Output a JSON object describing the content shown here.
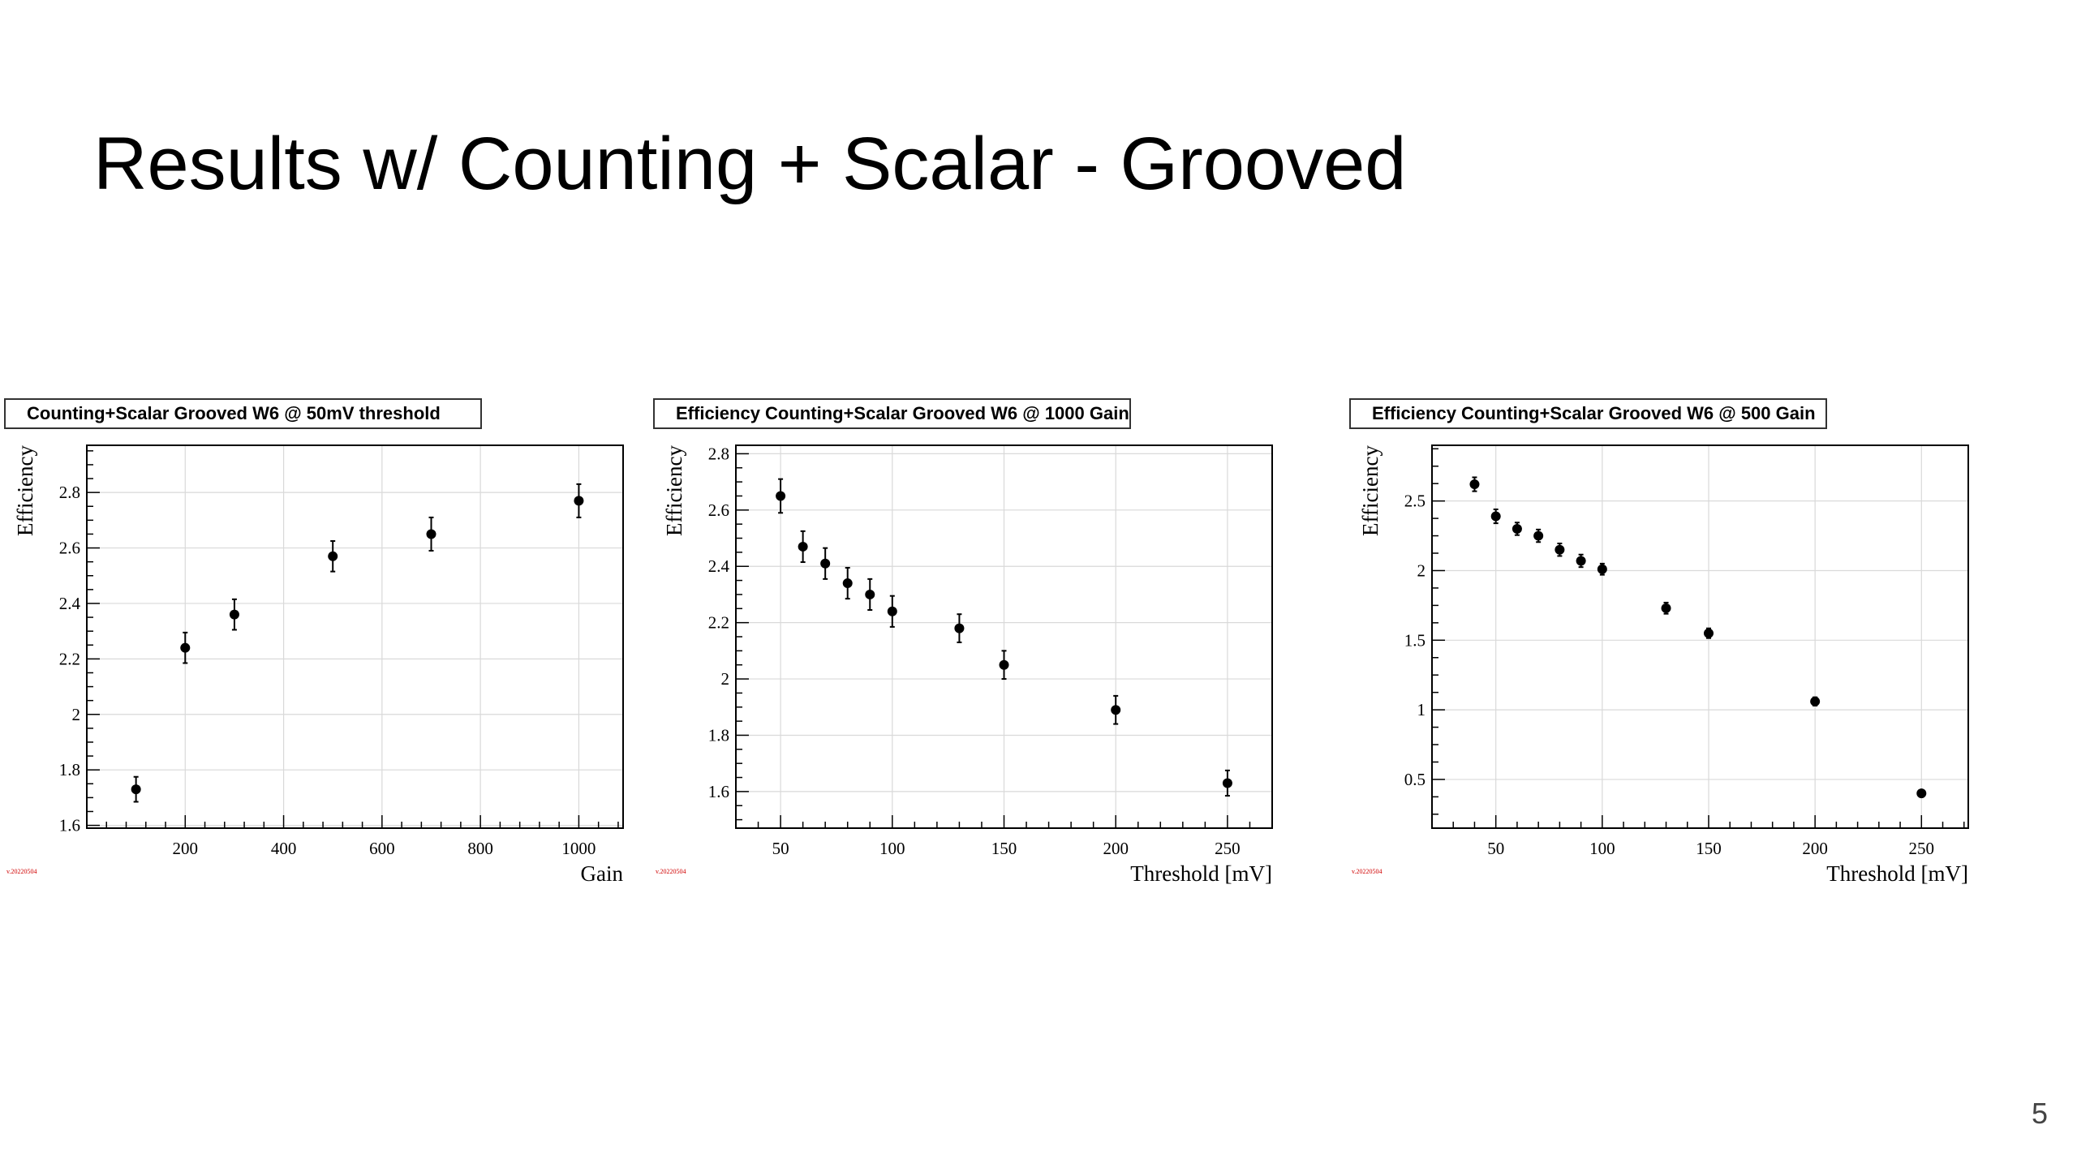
{
  "slide": {
    "title": "Results w/ Counting + Scalar - Grooved",
    "page_number": "5"
  },
  "chart_data": [
    {
      "type": "scatter",
      "title": "Counting+Scalar Grooved W6 @ 50mV threshold",
      "xlabel": "Gain",
      "ylabel": "Efficiency",
      "xlim": [
        0,
        1090
      ],
      "ylim": [
        1.59,
        2.97
      ],
      "xticks": [
        200,
        400,
        600,
        800,
        1000
      ],
      "yticks": [
        1.6,
        1.8,
        2,
        2.2,
        2.4,
        2.6,
        2.8
      ],
      "xtick_labels": [
        "200",
        "400",
        "600",
        "800",
        "1000"
      ],
      "ytick_labels": [
        "1.6",
        "1.8",
        "2",
        "2.2",
        "2.4",
        "2.6",
        "2.8"
      ],
      "grid": true,
      "stamp": "v.20220504",
      "series": [
        {
          "x": [
            100,
            200,
            300,
            500,
            700,
            1000
          ],
          "y": [
            1.73,
            2.24,
            2.36,
            2.57,
            2.65,
            2.77
          ],
          "yerr": [
            0.045,
            0.055,
            0.055,
            0.055,
            0.06,
            0.06
          ]
        }
      ]
    },
    {
      "type": "scatter",
      "title": "Efficiency Counting+Scalar Grooved W6 @ 1000 Gain",
      "xlabel": "Threshold [mV]",
      "ylabel": "Efficiency",
      "xlim": [
        30,
        270
      ],
      "ylim": [
        1.47,
        2.83
      ],
      "xticks": [
        50,
        100,
        150,
        200,
        250
      ],
      "yticks": [
        1.6,
        1.8,
        2,
        2.2,
        2.4,
        2.6,
        2.8
      ],
      "xtick_labels": [
        "50",
        "100",
        "150",
        "200",
        "250"
      ],
      "ytick_labels": [
        "1.6",
        "1.8",
        "2",
        "2.2",
        "2.4",
        "2.6",
        "2.8"
      ],
      "grid": true,
      "stamp": "v.20220504",
      "series": [
        {
          "x": [
            50,
            60,
            70,
            80,
            90,
            100,
            130,
            150,
            200,
            250
          ],
          "y": [
            2.65,
            2.47,
            2.41,
            2.34,
            2.3,
            2.24,
            2.18,
            2.05,
            1.89,
            1.63
          ],
          "yerr": [
            0.06,
            0.055,
            0.055,
            0.055,
            0.055,
            0.055,
            0.05,
            0.05,
            0.05,
            0.045
          ]
        }
      ]
    },
    {
      "type": "scatter",
      "title": "Efficiency Counting+Scalar Grooved W6 @ 500 Gain",
      "xlabel": "Threshold [mV]",
      "ylabel": "Efficiency",
      "xlim": [
        20,
        272
      ],
      "ylim": [
        0.15,
        2.9
      ],
      "xticks": [
        50,
        100,
        150,
        200,
        250
      ],
      "yticks": [
        0.5,
        1,
        1.5,
        2,
        2.5
      ],
      "xtick_labels": [
        "50",
        "100",
        "150",
        "200",
        "250"
      ],
      "ytick_labels": [
        "0.5",
        "1",
        "1.5",
        "2",
        "2.5"
      ],
      "grid": true,
      "stamp": "v.20220504",
      "series": [
        {
          "x": [
            40,
            50,
            60,
            70,
            80,
            90,
            100,
            130,
            150,
            200,
            250
          ],
          "y": [
            2.62,
            2.39,
            2.3,
            2.25,
            2.15,
            2.07,
            2.01,
            1.73,
            1.55,
            1.06,
            0.4
          ],
          "yerr": [
            0.05,
            0.05,
            0.045,
            0.045,
            0.045,
            0.045,
            0.04,
            0.04,
            0.035,
            0.03,
            0.02
          ]
        }
      ]
    }
  ]
}
